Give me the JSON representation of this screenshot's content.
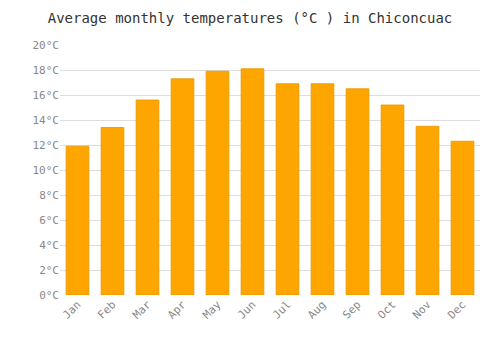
{
  "chart_data": {
    "type": "bar",
    "title": "Average monthly temperatures (°C ) in Chiconcuac",
    "categories": [
      "Jan",
      "Feb",
      "Mar",
      "Apr",
      "May",
      "Jun",
      "Jul",
      "Aug",
      "Sep",
      "Oct",
      "Nov",
      "Dec"
    ],
    "values": [
      11.9,
      13.4,
      15.6,
      17.3,
      17.9,
      18.1,
      16.9,
      16.9,
      16.5,
      15.2,
      13.5,
      12.3
    ],
    "color": "#FFA500",
    "ylim": [
      0,
      20
    ],
    "yticks": [
      {
        "value": 0,
        "label": "0°C"
      },
      {
        "value": 2,
        "label": "2°C"
      },
      {
        "value": 4,
        "label": "4°C"
      },
      {
        "value": 6,
        "label": "6°C"
      },
      {
        "value": 8,
        "label": "8°C"
      },
      {
        "value": 10,
        "label": "10°C"
      },
      {
        "value": 12,
        "label": "12°C"
      },
      {
        "value": 14,
        "label": "14°C"
      },
      {
        "value": 16,
        "label": "16°C"
      },
      {
        "value": 18,
        "label": "18°C"
      },
      {
        "value": 20,
        "label": "20°C"
      }
    ],
    "grid": true
  }
}
